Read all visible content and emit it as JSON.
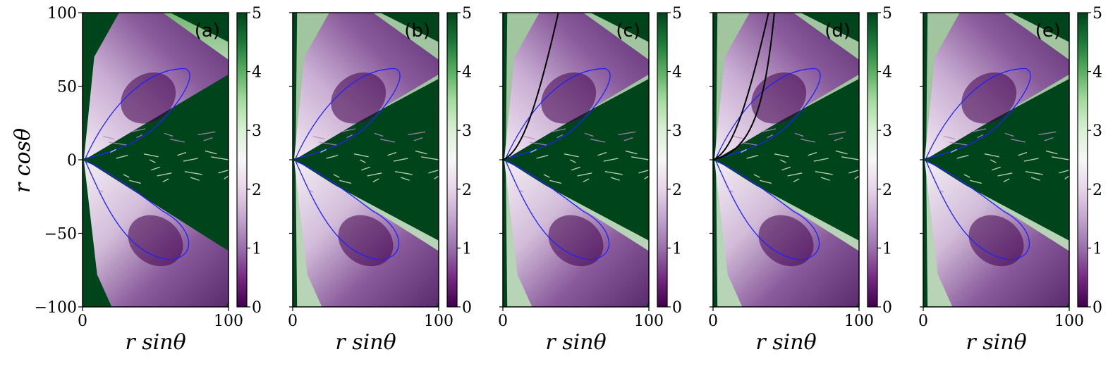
{
  "figure": {
    "ylabel": "r cosθ",
    "colors": {
      "colormap": [
        "#40004b",
        "#762a83",
        "#9970ab",
        "#c2a5cf",
        "#e7d4e8",
        "#f7f7f7",
        "#d9f0d3",
        "#a6dba0",
        "#5aae61",
        "#1b7837",
        "#00441b"
      ],
      "contour": "#2020ff",
      "fieldline": "#000000"
    }
  },
  "chart_data": [
    {
      "type": "heatmap",
      "panel_label": "(a)",
      "xlabel": "r sinθ",
      "ylabel": "r cosθ",
      "xlim": [
        0,
        100
      ],
      "ylim": [
        -100,
        100
      ],
      "x_ticks": [
        "0",
        "100"
      ],
      "y_ticks": [
        "100",
        "50",
        "0",
        "−50",
        "−100"
      ],
      "colorbar": {
        "range": [
          0,
          5
        ],
        "ticks": [
          "0",
          "1",
          "2",
          "3",
          "4",
          "5"
        ]
      },
      "has_field_line": false
    },
    {
      "type": "heatmap",
      "panel_label": "(b)",
      "xlabel": "r sinθ",
      "ylabel": "",
      "xlim": [
        0,
        100
      ],
      "ylim": [
        -100,
        100
      ],
      "x_ticks": [
        "0",
        "100"
      ],
      "y_ticks": [],
      "colorbar": {
        "range": [
          0,
          5
        ],
        "ticks": [
          "0",
          "1",
          "2",
          "3",
          "4",
          "5"
        ]
      },
      "has_field_line": false
    },
    {
      "type": "heatmap",
      "panel_label": "(c)",
      "xlabel": "r sinθ",
      "ylabel": "",
      "xlim": [
        0,
        100
      ],
      "ylim": [
        -100,
        100
      ],
      "x_ticks": [
        "0",
        "100"
      ],
      "y_ticks": [],
      "colorbar": {
        "range": [
          0,
          5
        ],
        "ticks": [
          "0",
          "1",
          "2",
          "3",
          "4",
          "5"
        ]
      },
      "has_field_line": true
    },
    {
      "type": "heatmap",
      "panel_label": "(d)",
      "xlabel": "r sinθ",
      "ylabel": "",
      "xlim": [
        0,
        100
      ],
      "ylim": [
        -100,
        100
      ],
      "x_ticks": [
        "0",
        "100"
      ],
      "y_ticks": [],
      "colorbar": {
        "range": [
          0,
          5
        ],
        "ticks": [
          "0",
          "1",
          "2",
          "3",
          "4",
          "5"
        ]
      },
      "has_field_line": true
    },
    {
      "type": "heatmap",
      "panel_label": "(e)",
      "xlabel": "r sinθ",
      "ylabel": "",
      "xlim": [
        0,
        100
      ],
      "ylim": [
        -100,
        100
      ],
      "x_ticks": [
        "0",
        "100"
      ],
      "y_ticks": [],
      "colorbar": {
        "range": [
          0,
          5
        ],
        "ticks": [
          "0",
          "1",
          "2",
          "3",
          "4",
          "5"
        ]
      },
      "has_field_line": false
    }
  ]
}
